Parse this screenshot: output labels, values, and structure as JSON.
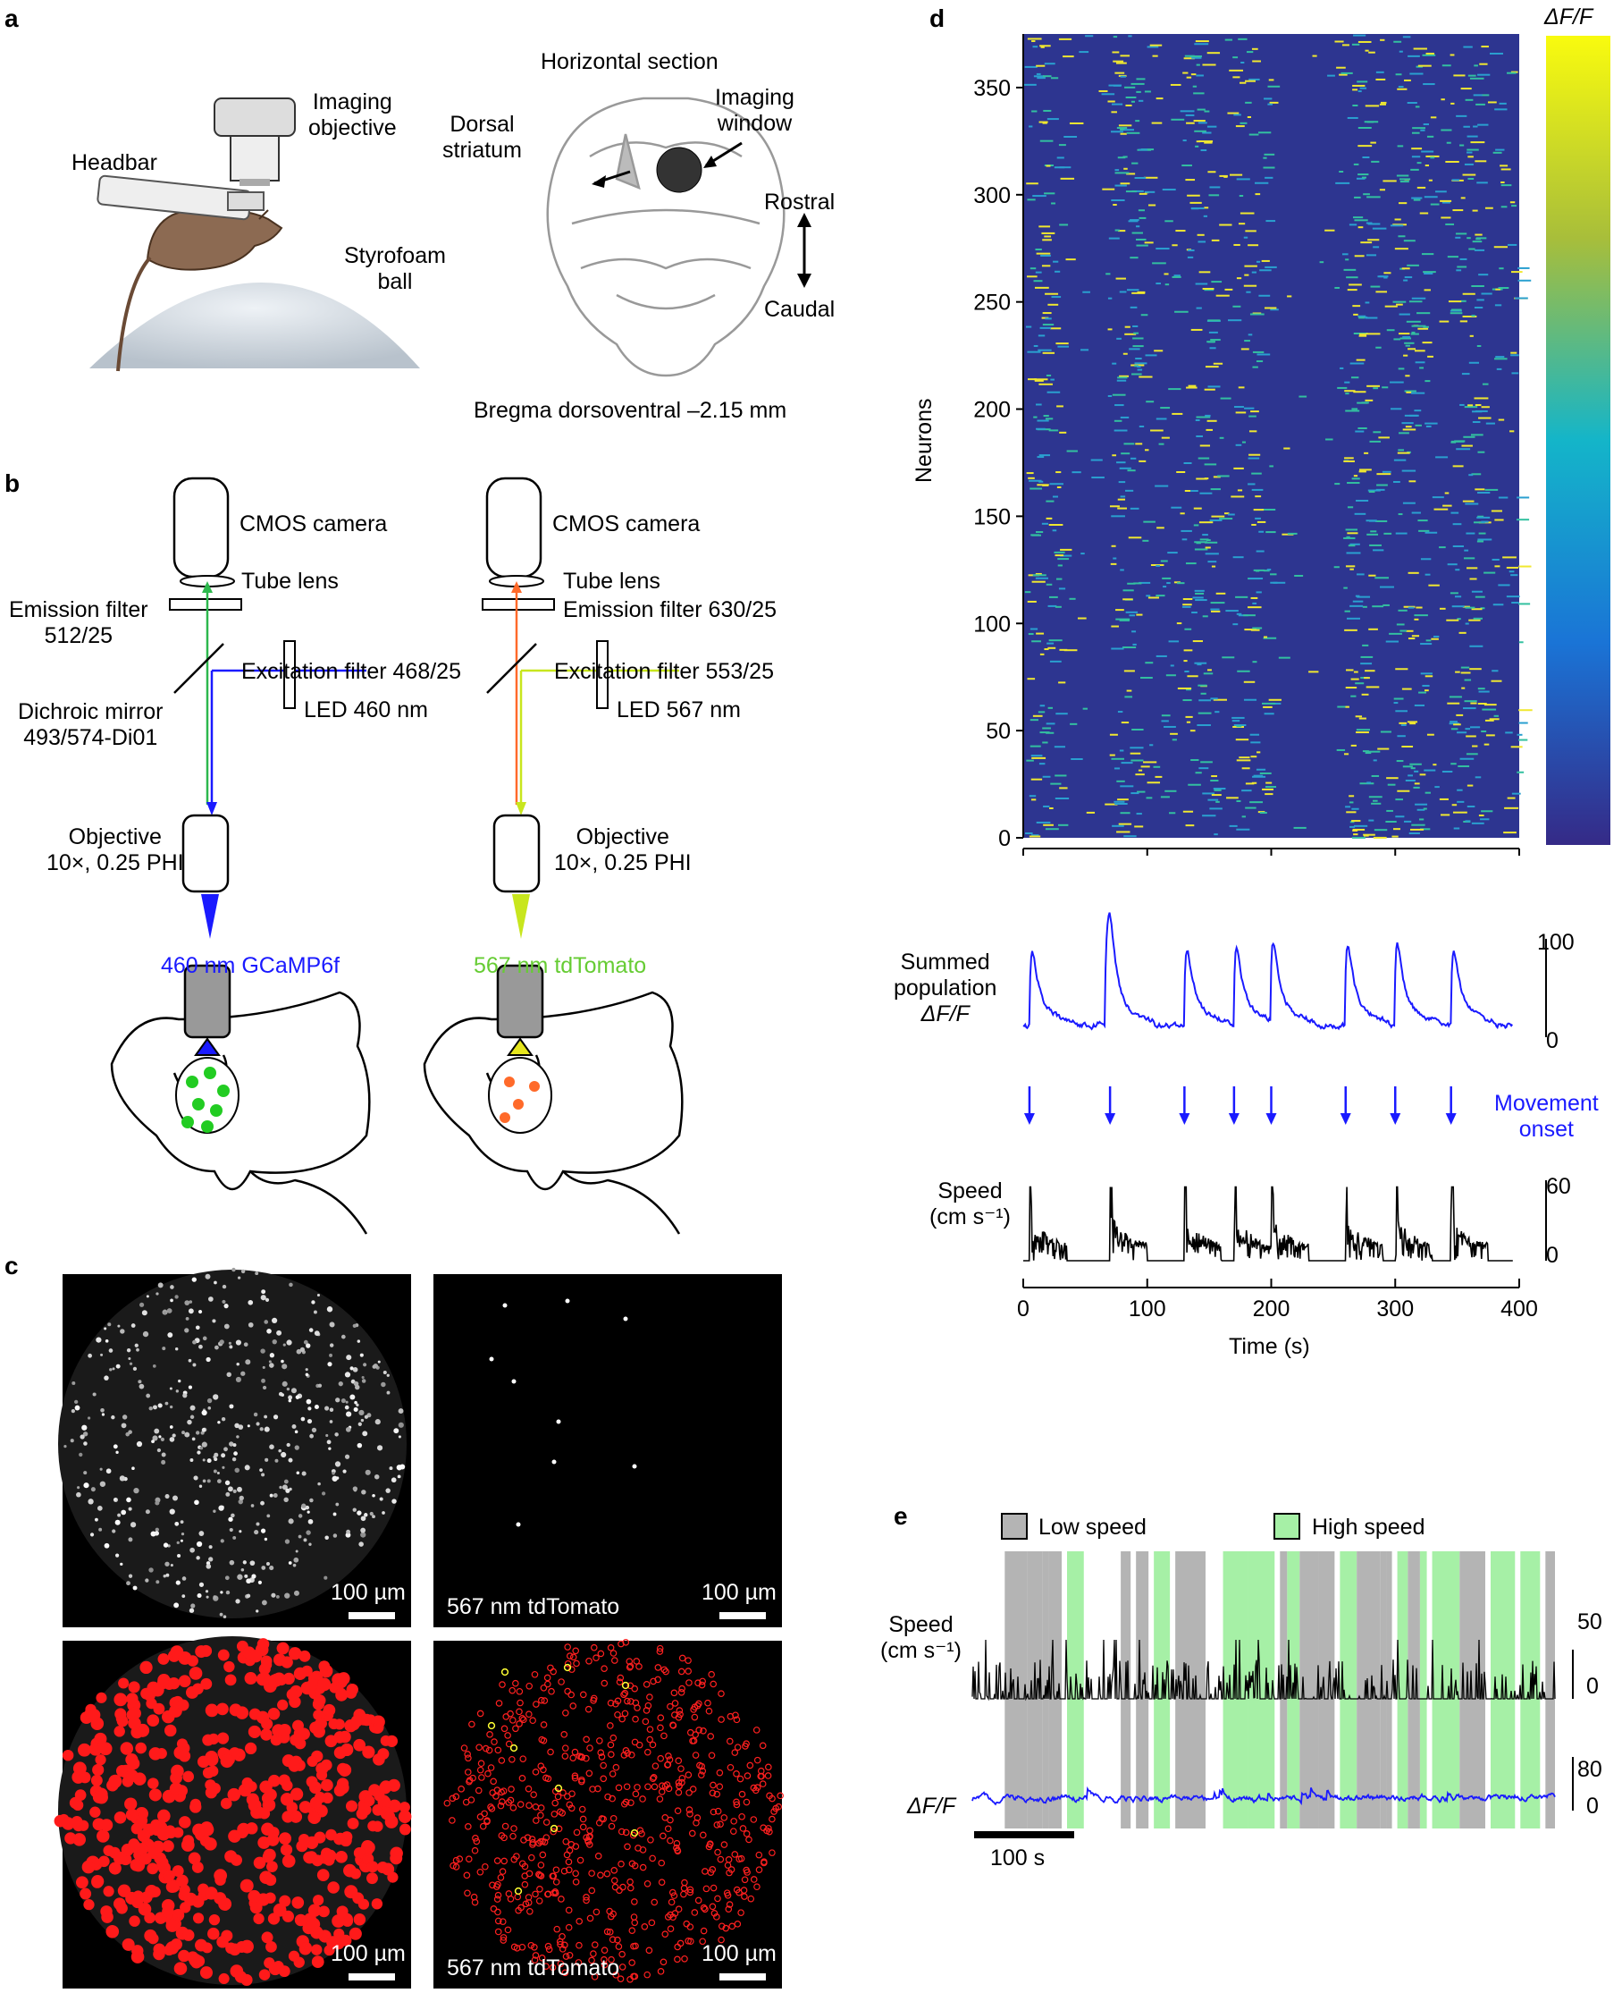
{
  "panels": {
    "a": "a",
    "b": "b",
    "c": "c",
    "d": "d",
    "e": "e"
  },
  "a": {
    "imaging_objective": [
      "Imaging",
      "objective"
    ],
    "headbar": "Headbar",
    "styrofoam": [
      "Styrofoam",
      "ball"
    ],
    "horizontal_section": "Horizontal section",
    "dorsal_striatum": [
      "Dorsal",
      "striatum"
    ],
    "imaging_window": [
      "Imaging",
      "window"
    ],
    "rostral": "Rostral",
    "caudal": "Caudal",
    "bregma": "Bregma dorsoventral –2.15 mm"
  },
  "b": {
    "left": {
      "camera": "CMOS camera",
      "tube_lens": "Tube lens",
      "emission": [
        "Emission filter",
        "512/25"
      ],
      "excitation": "Excitation filter 468/25",
      "dichroic": [
        "Dichroic mirror",
        "493/574-Di01"
      ],
      "led": "LED 460 nm",
      "objective": [
        "Objective",
        "10×, 0.25 PHI"
      ],
      "wavelength": "460 nm GCaMP6f"
    },
    "right": {
      "camera": "CMOS camera",
      "tube_lens": "Tube lens",
      "emission": "Emission filter 630/25",
      "excitation": "Excitation filter 553/25",
      "led": "LED 567 nm",
      "objective": [
        "Objective",
        "10×, 0.25 PHI"
      ],
      "wavelength": "567 nm tdTomato"
    },
    "colors": {
      "blue": "#1a1aff",
      "green": "#2db84d",
      "orange": "#ff6a2a",
      "yellow": "#c8e61e",
      "wl_green": "#66cc33"
    }
  },
  "c": {
    "scalebar": "100 µm",
    "tdtomato": "567 nm tdTomato"
  },
  "d": {
    "colorbar_label": "ΔF/F",
    "ylabel": "Neurons",
    "yticks": [
      "0",
      "50",
      "100",
      "150",
      "200",
      "250",
      "300",
      "350"
    ],
    "summed_label": [
      "Summed",
      "population",
      "ΔF/F"
    ],
    "summed_ticks": [
      "100",
      "0"
    ],
    "movement_onset": [
      "Movement",
      "onset"
    ],
    "speed_label": [
      "Speed",
      "(cm s⁻¹)"
    ],
    "speed_ticks": [
      "60",
      "0"
    ],
    "xticks": [
      "0",
      "100",
      "200",
      "300",
      "400"
    ],
    "xlabel": "Time (s)"
  },
  "e": {
    "low_speed": "Low speed",
    "high_speed": "High speed",
    "speed_label": [
      "Speed",
      "(cm s⁻¹)"
    ],
    "speed_ticks": [
      "50",
      "0"
    ],
    "dff_label": "ΔF/F",
    "dff_ticks": [
      "80",
      "0"
    ],
    "scalebar": "100 s",
    "colors": {
      "low": "#b4b4b4",
      "high": "#a6f0a6"
    }
  },
  "chart_data": [
    {
      "type": "heatmap",
      "ylabel": "Neurons",
      "yticks": [
        0,
        50,
        100,
        150,
        200,
        250,
        300,
        350
      ],
      "xlim": [
        0,
        400
      ],
      "colorbar": "ΔF/F",
      "colormap": "parula"
    },
    {
      "type": "line",
      "ylabel": "Summed population ΔF/F",
      "ylim": [
        0,
        100
      ],
      "x_movement_onsets": [
        5,
        70,
        130,
        170,
        200,
        260,
        300,
        345
      ]
    },
    {
      "type": "line",
      "ylabel": "Speed (cm s⁻¹)",
      "ylim": [
        0,
        60
      ],
      "xlim": [
        0,
        400
      ],
      "xlabel": "Time (s)",
      "xticks": [
        0,
        100,
        200,
        300,
        400
      ]
    }
  ]
}
